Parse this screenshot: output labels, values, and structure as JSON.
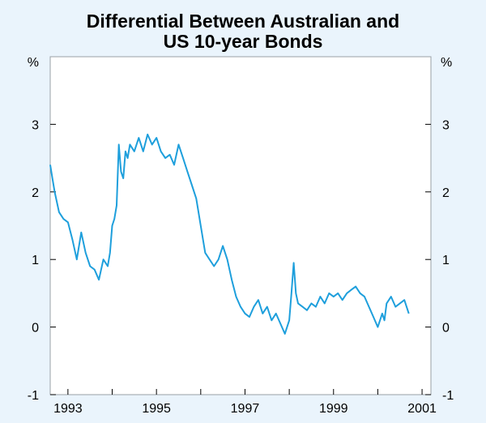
{
  "title": {
    "line1": "Differential Between Australian and",
    "line2": "US 10-year Bonds"
  },
  "colors": {
    "background": "#eaf4fc",
    "plot_background": "#ffffff",
    "line": "#1e9fdc",
    "axis": "#000000"
  },
  "chart_data": {
    "type": "line",
    "title": "Differential Between Australian and US 10-year Bonds",
    "xlabel": "",
    "ylabel": "%",
    "ylabel_right": "%",
    "xlim": [
      1992.6,
      2001.2
    ],
    "ylim": [
      -1,
      4
    ],
    "y_ticks": [
      -1,
      0,
      1,
      2,
      3
    ],
    "x_tick_labels": [
      "1993",
      "1995",
      "1997",
      "1999",
      "2001"
    ],
    "grid": false,
    "series": [
      {
        "name": "Differential",
        "x": [
          1992.6,
          1992.65,
          1992.7,
          1992.8,
          1992.9,
          1993.0,
          1993.1,
          1993.2,
          1993.3,
          1993.4,
          1993.5,
          1993.6,
          1993.7,
          1993.8,
          1993.9,
          1993.95,
          1994.0,
          1994.05,
          1994.1,
          1994.15,
          1994.2,
          1994.25,
          1994.3,
          1994.35,
          1994.4,
          1994.5,
          1994.6,
          1994.7,
          1994.8,
          1994.9,
          1995.0,
          1995.1,
          1995.2,
          1995.3,
          1995.4,
          1995.5,
          1995.6,
          1995.7,
          1995.8,
          1995.9,
          1996.0,
          1996.1,
          1996.2,
          1996.3,
          1996.4,
          1996.5,
          1996.6,
          1996.7,
          1996.8,
          1996.9,
          1997.0,
          1997.1,
          1997.2,
          1997.3,
          1997.4,
          1997.5,
          1997.6,
          1997.7,
          1997.8,
          1997.9,
          1998.0,
          1998.05,
          1998.1,
          1998.15,
          1998.2,
          1998.3,
          1998.4,
          1998.5,
          1998.6,
          1998.7,
          1998.8,
          1998.9,
          1999.0,
          1999.1,
          1999.2,
          1999.3,
          1999.4,
          1999.5,
          1999.6,
          1999.7,
          1999.8,
          1999.9,
          2000.0,
          2000.1,
          2000.15,
          2000.2,
          2000.3,
          2000.4,
          2000.5,
          2000.6,
          2000.7
        ],
        "values": [
          2.4,
          2.2,
          2.0,
          1.7,
          1.6,
          1.55,
          1.3,
          1.0,
          1.4,
          1.1,
          0.9,
          0.85,
          0.7,
          1.0,
          0.9,
          1.1,
          1.5,
          1.6,
          1.8,
          2.7,
          2.3,
          2.2,
          2.6,
          2.5,
          2.7,
          2.6,
          2.8,
          2.6,
          2.85,
          2.7,
          2.8,
          2.6,
          2.5,
          2.55,
          2.4,
          2.7,
          2.5,
          2.3,
          2.1,
          1.9,
          1.5,
          1.1,
          1.0,
          0.9,
          1.0,
          1.2,
          1.0,
          0.7,
          0.45,
          0.3,
          0.2,
          0.15,
          0.3,
          0.4,
          0.2,
          0.3,
          0.1,
          0.2,
          0.05,
          -0.1,
          0.1,
          0.5,
          0.95,
          0.5,
          0.35,
          0.3,
          0.25,
          0.35,
          0.3,
          0.45,
          0.35,
          0.5,
          0.45,
          0.5,
          0.4,
          0.5,
          0.55,
          0.6,
          0.5,
          0.45,
          0.3,
          0.15,
          0.0,
          0.2,
          0.1,
          0.35,
          0.45,
          0.3,
          0.35,
          0.4,
          0.2
        ]
      }
    ]
  }
}
